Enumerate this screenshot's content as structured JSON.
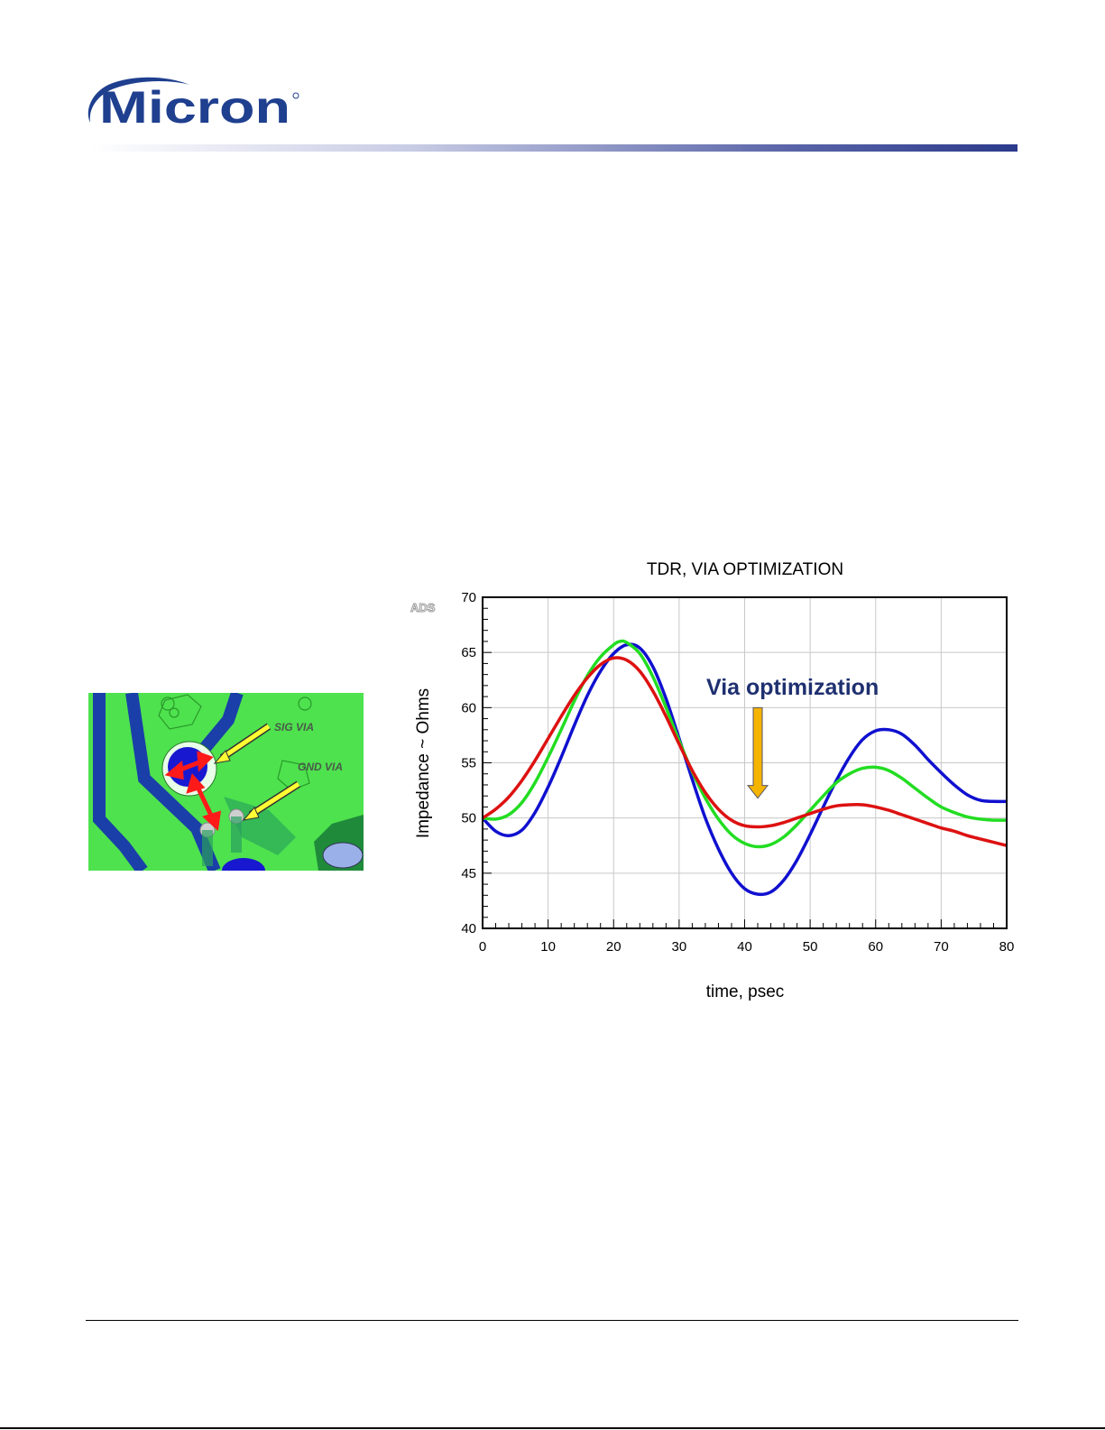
{
  "brand": {
    "name": "Micron",
    "color": "#1f3f8f"
  },
  "pcb_image": {
    "labels": {
      "sig_via": "SIG VIA",
      "gnd_via": "GND VIA"
    },
    "colors": {
      "board": "#4ee24e",
      "trace": "#1a3fa8",
      "arrow": "#ff1a1a",
      "callout": "#ffff33"
    }
  },
  "chart_data": {
    "type": "line",
    "title": "TDR, VIA OPTIMIZATION",
    "xlabel": "time, psec",
    "ylabel": "Impedance ~ Ohms",
    "xlim": [
      0,
      80
    ],
    "ylim": [
      40,
      70
    ],
    "xticks": [
      "0",
      "10",
      "20",
      "30",
      "40",
      "50",
      "60",
      "70",
      "80"
    ],
    "yticks": [
      "40",
      "45",
      "50",
      "55",
      "60",
      "65",
      "70"
    ],
    "grid": true,
    "watermark": "ADS",
    "annotation": {
      "text": "Via optimization",
      "x": 42,
      "y": 60,
      "arrow_color": "#f5b400"
    },
    "series": [
      {
        "color": "#1010d0",
        "points": [
          [
            0,
            50
          ],
          [
            2,
            48.8
          ],
          [
            4,
            48.4
          ],
          [
            6,
            48.9
          ],
          [
            8,
            50.5
          ],
          [
            10,
            52.8
          ],
          [
            12,
            55.5
          ],
          [
            14,
            58.4
          ],
          [
            16,
            61.1
          ],
          [
            18,
            63.3
          ],
          [
            20,
            64.9
          ],
          [
            22,
            65.7
          ],
          [
            24,
            65.4
          ],
          [
            26,
            63.7
          ],
          [
            28,
            60.8
          ],
          [
            30,
            57.2
          ],
          [
            32,
            53.5
          ],
          [
            34,
            50
          ],
          [
            36,
            47.2
          ],
          [
            38,
            45
          ],
          [
            40,
            43.6
          ],
          [
            42,
            43.1
          ],
          [
            44,
            43.3
          ],
          [
            46,
            44.4
          ],
          [
            48,
            46.2
          ],
          [
            50,
            48.5
          ],
          [
            52,
            51
          ],
          [
            54,
            53.4
          ],
          [
            56,
            55.5
          ],
          [
            58,
            57.1
          ],
          [
            60,
            57.9
          ],
          [
            62,
            58
          ],
          [
            64,
            57.6
          ],
          [
            66,
            56.6
          ],
          [
            68,
            55.3
          ],
          [
            70,
            54.1
          ],
          [
            72,
            53
          ],
          [
            74,
            52.1
          ],
          [
            76,
            51.6
          ],
          [
            78,
            51.5
          ],
          [
            80,
            51.5
          ]
        ]
      },
      {
        "color": "#22dd22",
        "points": [
          [
            0,
            50
          ],
          [
            2,
            49.9
          ],
          [
            4,
            50.3
          ],
          [
            6,
            51.4
          ],
          [
            8,
            53.2
          ],
          [
            10,
            55.5
          ],
          [
            12,
            58
          ],
          [
            14,
            60.6
          ],
          [
            16,
            62.9
          ],
          [
            18,
            64.6
          ],
          [
            20,
            65.7
          ],
          [
            21,
            66
          ],
          [
            22,
            65.9
          ],
          [
            24,
            64.9
          ],
          [
            26,
            62.8
          ],
          [
            28,
            60
          ],
          [
            30,
            57
          ],
          [
            32,
            54.2
          ],
          [
            34,
            51.8
          ],
          [
            36,
            49.9
          ],
          [
            38,
            48.5
          ],
          [
            40,
            47.7
          ],
          [
            42,
            47.4
          ],
          [
            44,
            47.6
          ],
          [
            46,
            48.3
          ],
          [
            48,
            49.4
          ],
          [
            50,
            50.7
          ],
          [
            52,
            52
          ],
          [
            54,
            53.2
          ],
          [
            56,
            54
          ],
          [
            58,
            54.5
          ],
          [
            60,
            54.6
          ],
          [
            62,
            54.3
          ],
          [
            64,
            53.6
          ],
          [
            66,
            52.7
          ],
          [
            68,
            51.8
          ],
          [
            70,
            51
          ],
          [
            72,
            50.5
          ],
          [
            74,
            50.1
          ],
          [
            76,
            49.9
          ],
          [
            78,
            49.8
          ],
          [
            80,
            49.8
          ]
        ]
      },
      {
        "color": "#dd1111",
        "points": [
          [
            0,
            50
          ],
          [
            2,
            50.8
          ],
          [
            4,
            51.9
          ],
          [
            6,
            53.4
          ],
          [
            8,
            55.2
          ],
          [
            10,
            57.2
          ],
          [
            12,
            59.2
          ],
          [
            14,
            61.1
          ],
          [
            16,
            62.7
          ],
          [
            18,
            63.9
          ],
          [
            20,
            64.5
          ],
          [
            22,
            64.3
          ],
          [
            24,
            63.3
          ],
          [
            26,
            61.5
          ],
          [
            28,
            59.2
          ],
          [
            30,
            56.7
          ],
          [
            32,
            54.3
          ],
          [
            34,
            52.3
          ],
          [
            36,
            50.8
          ],
          [
            38,
            49.8
          ],
          [
            40,
            49.3
          ],
          [
            42,
            49.2
          ],
          [
            44,
            49.3
          ],
          [
            46,
            49.6
          ],
          [
            48,
            50
          ],
          [
            50,
            50.4
          ],
          [
            52,
            50.8
          ],
          [
            54,
            51.1
          ],
          [
            56,
            51.2
          ],
          [
            58,
            51.2
          ],
          [
            60,
            51
          ],
          [
            62,
            50.7
          ],
          [
            64,
            50.3
          ],
          [
            66,
            49.9
          ],
          [
            68,
            49.5
          ],
          [
            70,
            49.1
          ],
          [
            72,
            48.8
          ],
          [
            74,
            48.4
          ],
          [
            76,
            48.1
          ],
          [
            78,
            47.8
          ],
          [
            80,
            47.5
          ]
        ]
      }
    ]
  }
}
